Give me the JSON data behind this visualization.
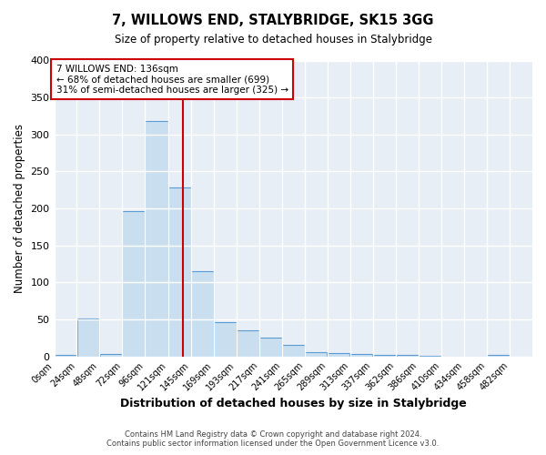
{
  "title": "7, WILLOWS END, STALYBRIDGE, SK15 3GG",
  "subtitle": "Size of property relative to detached houses in Stalybridge",
  "xlabel": "Distribution of detached houses by size in Stalybridge",
  "ylabel": "Number of detached properties",
  "bar_left_edges": [
    0,
    24,
    48,
    72,
    96,
    121,
    145,
    169,
    193,
    217,
    241,
    265,
    289,
    313,
    337,
    362,
    386,
    410,
    434,
    458
  ],
  "bar_widths": [
    24,
    24,
    24,
    24,
    25,
    24,
    24,
    24,
    24,
    24,
    24,
    24,
    24,
    24,
    25,
    24,
    24,
    24,
    24,
    24
  ],
  "bar_heights": [
    2,
    51,
    3,
    196,
    318,
    228,
    115,
    46,
    35,
    25,
    15,
    6,
    5,
    3,
    2,
    2,
    1,
    0,
    0,
    2
  ],
  "bar_color": "#c9dff0",
  "bar_edge_color": "#5b9bd5",
  "tick_labels": [
    "0sqm",
    "24sqm",
    "48sqm",
    "72sqm",
    "96sqm",
    "121sqm",
    "145sqm",
    "169sqm",
    "193sqm",
    "217sqm",
    "241sqm",
    "265sqm",
    "289sqm",
    "313sqm",
    "337sqm",
    "362sqm",
    "386sqm",
    "410sqm",
    "434sqm",
    "458sqm",
    "482sqm"
  ],
  "tick_positions": [
    0,
    24,
    48,
    72,
    96,
    121,
    145,
    169,
    193,
    217,
    241,
    265,
    289,
    313,
    337,
    362,
    386,
    410,
    434,
    458,
    482
  ],
  "ylim": [
    0,
    400
  ],
  "yticks": [
    0,
    50,
    100,
    150,
    200,
    250,
    300,
    350,
    400
  ],
  "xlim_max": 506,
  "property_size": 136,
  "vline_color": "#cc0000",
  "annotation_title": "7 WILLOWS END: 136sqm",
  "annotation_line1": "← 68% of detached houses are smaller (699)",
  "annotation_line2": "31% of semi-detached houses are larger (325) →",
  "annotation_box_color": "#ffffff",
  "annotation_box_edge": "#cc0000",
  "footer_line1": "Contains HM Land Registry data © Crown copyright and database right 2024.",
  "footer_line2": "Contains public sector information licensed under the Open Government Licence v3.0.",
  "bg_color": "#ffffff",
  "plot_bg_color": "#e8eef5",
  "grid_color": "#ffffff",
  "title_fontsize": 10.5,
  "subtitle_fontsize": 8.5
}
